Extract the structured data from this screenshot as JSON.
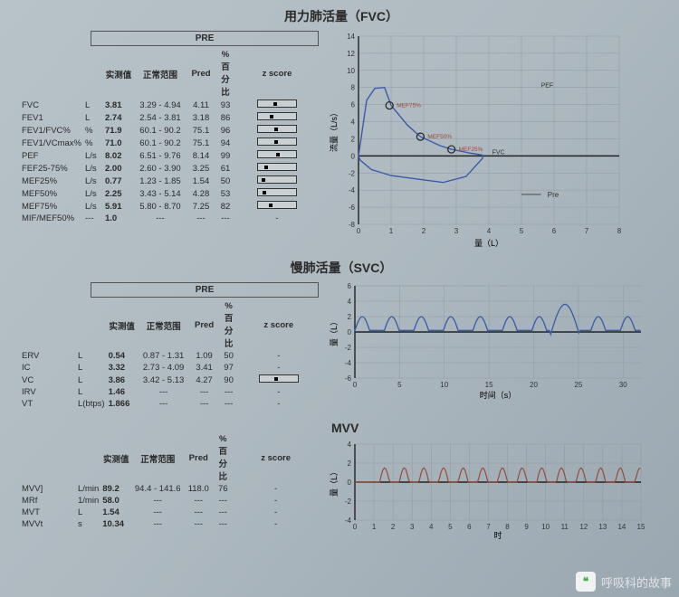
{
  "sections": {
    "fvc": {
      "title": "用力肺活量（FVC）",
      "pre_label": "PRE",
      "headers": [
        "实测值",
        "正常范围",
        "Pred",
        "% 百分比",
        "z score"
      ]
    },
    "svc": {
      "title": "慢肺活量（SVC）",
      "pre_label": "PRE",
      "headers": [
        "实测值",
        "正常范围",
        "Pred",
        "% 百分比",
        "z score"
      ]
    },
    "mvv": {
      "title": "MVV",
      "headers": [
        "实测值",
        "正常范围",
        "Pred",
        "% 百分比",
        "z score"
      ]
    }
  },
  "fvc_rows": [
    {
      "name": "FVC",
      "unit": "L",
      "meas": "3.81",
      "range": "3.29 - 4.94",
      "pred": "4.11",
      "pct": "93",
      "z": 0.42
    },
    {
      "name": "FEV1",
      "unit": "L",
      "meas": "2.74",
      "range": "2.54 - 3.81",
      "pred": "3.18",
      "pct": "86",
      "z": 0.32
    },
    {
      "name": "FEV1/FVC%",
      "unit": "%",
      "meas": "71.9",
      "range": "60.1 - 90.2",
      "pred": "75.1",
      "pct": "96",
      "z": 0.46
    },
    {
      "name": "FEV1/VCmax%",
      "unit": "%",
      "meas": "71.0",
      "range": "60.1 - 90.2",
      "pred": "75.1",
      "pct": "94",
      "z": 0.44
    },
    {
      "name": "PEF",
      "unit": "L/s",
      "meas": "8.02",
      "range": "6.51 - 9.76",
      "pred": "8.14",
      "pct": "99",
      "z": 0.5
    },
    {
      "name": "FEF25-75%",
      "unit": "L/s",
      "meas": "2.00",
      "range": "2.60 - 3.90",
      "pred": "3.25",
      "pct": "61",
      "z": 0.18
    },
    {
      "name": "MEF25%",
      "unit": "L/s",
      "meas": "0.77",
      "range": "1.23 - 1.85",
      "pred": "1.54",
      "pct": "50",
      "z": 0.1
    },
    {
      "name": "MEF50%",
      "unit": "L/s",
      "meas": "2.25",
      "range": "3.43 - 5.14",
      "pred": "4.28",
      "pct": "53",
      "z": 0.12
    },
    {
      "name": "MEF75%",
      "unit": "L/s",
      "meas": "5.91",
      "range": "5.80 - 8.70",
      "pred": "7.25",
      "pct": "82",
      "z": 0.3
    },
    {
      "name": "MIF/MEF50%",
      "unit": "---",
      "meas": "1.0",
      "range": "---",
      "pred": "---",
      "pct": "---",
      "z": null
    }
  ],
  "svc_rows": [
    {
      "name": "ERV",
      "unit": "L",
      "meas": "0.54",
      "range": "0.87 - 1.31",
      "pred": "1.09",
      "pct": "50",
      "z": null
    },
    {
      "name": "IC",
      "unit": "L",
      "meas": "3.32",
      "range": "2.73 - 4.09",
      "pred": "3.41",
      "pct": "97",
      "z": null
    },
    {
      "name": "VC",
      "unit": "L",
      "meas": "3.86",
      "range": "3.42 - 5.13",
      "pred": "4.27",
      "pct": "90",
      "z": 0.4
    },
    {
      "name": "IRV",
      "unit": "L",
      "meas": "1.46",
      "range": "---",
      "pred": "---",
      "pct": "---",
      "z": null
    },
    {
      "name": "VT",
      "unit": "L(btps)",
      "meas": "1.866",
      "range": "---",
      "pred": "---",
      "pct": "---",
      "z": null
    }
  ],
  "mvv_rows": [
    {
      "name": "MVV]",
      "unit": "L/min",
      "meas": "89.2",
      "range": "94.4 - 141.6",
      "pred": "118.0",
      "pct": "76",
      "z": null
    },
    {
      "name": "MRf",
      "unit": "1/min",
      "meas": "58.0",
      "range": "---",
      "pred": "---",
      "pct": "---",
      "z": null
    },
    {
      "name": "MVT",
      "unit": "L",
      "meas": "1.54",
      "range": "---",
      "pred": "---",
      "pct": "---",
      "z": null
    },
    {
      "name": "MVVt",
      "unit": "s",
      "meas": "10.34",
      "range": "---",
      "pred": "---",
      "pct": "---",
      "z": null
    }
  ],
  "fvc_chart": {
    "xlabel": "量（L）",
    "ylabel": "流量（L/s）",
    "xlim": [
      0,
      8
    ],
    "ylim": [
      -8,
      14
    ],
    "xticks": [
      0,
      1,
      2,
      3,
      4,
      5,
      6,
      7,
      8
    ],
    "yticks": [
      -8,
      -6,
      -4,
      -2,
      0,
      2,
      4,
      6,
      8,
      10,
      12,
      14
    ],
    "legend": "— Pre",
    "legend_color": "#666",
    "line_color": "#3b5aa8",
    "grid_color": "#8a939b",
    "axis_color": "#222",
    "markers": [
      {
        "x": 0.95,
        "y": 5.9,
        "label": "MEF75%"
      },
      {
        "x": 1.9,
        "y": 2.25,
        "label": "MEF50%"
      },
      {
        "x": 2.85,
        "y": 0.77,
        "label": "MEF25%"
      }
    ],
    "marker_label_color": "#9a4a3a",
    "fvc_label": "FVC",
    "pef_label": "PEF",
    "loop": [
      [
        0,
        0
      ],
      [
        0.25,
        6.5
      ],
      [
        0.5,
        7.9
      ],
      [
        0.8,
        8.0
      ],
      [
        1.0,
        5.9
      ],
      [
        1.5,
        3.6
      ],
      [
        1.9,
        2.25
      ],
      [
        2.5,
        1.2
      ],
      [
        2.85,
        0.77
      ],
      [
        3.4,
        0.35
      ],
      [
        3.8,
        0.1
      ],
      [
        3.81,
        0
      ],
      [
        3.8,
        -0.3
      ],
      [
        3.3,
        -2.4
      ],
      [
        2.6,
        -3.1
      ],
      [
        1.8,
        -2.7
      ],
      [
        1.0,
        -2.3
      ],
      [
        0.4,
        -1.6
      ],
      [
        0.05,
        -0.5
      ],
      [
        0,
        0
      ]
    ]
  },
  "svc_chart": {
    "xlabel": "时间（s）",
    "ylabel": "量（L）",
    "xlim": [
      0,
      32
    ],
    "ylim": [
      -6,
      6
    ],
    "xticks": [
      0,
      5,
      10,
      15,
      20,
      25,
      30
    ],
    "yticks": [
      -6,
      -4,
      -2,
      0,
      2,
      4,
      6
    ],
    "line_color": "#3b5aa8",
    "grid_color": "#8a939b",
    "axis_color": "#222",
    "wave_period": 3.3,
    "wave_amp": 1.8,
    "wave_offset": 0.2,
    "big_peak_x": 23.5,
    "big_peak_y": 3.6,
    "big_trough_y": -0.5
  },
  "mvv_chart": {
    "xlabel": "时",
    "ylabel": "量（L）",
    "xlim": [
      0,
      15
    ],
    "ylim": [
      -4,
      4
    ],
    "xticks": [
      0,
      1,
      2,
      3,
      4,
      5,
      6,
      7,
      8,
      9,
      10,
      11,
      12,
      13,
      14,
      15
    ],
    "yticks": [
      -4,
      -2,
      0,
      2,
      4
    ],
    "line_color": "#9a4a3a",
    "grid_color": "#8a939b",
    "axis_color": "#222",
    "wave_period": 1.03,
    "wave_amp": 1.5,
    "wave_start": 1.3
  },
  "watermark": "呼吸科的故事"
}
